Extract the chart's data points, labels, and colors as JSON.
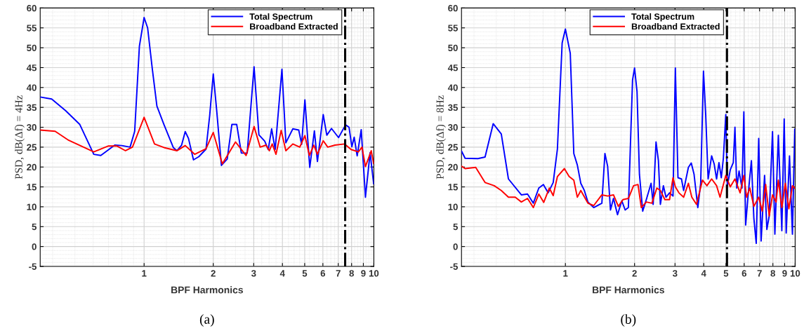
{
  "chart_data": [
    {
      "type": "line",
      "xlabel": "BPF Harmonics",
      "ylabel": "PSD, dB(Δf) = 4Hz",
      "log": "x",
      "grid": true,
      "legend": "top right",
      "line_style": "solid",
      "xlim": [
        0.353,
        10
      ],
      "xticks": [
        1,
        2,
        3,
        4,
        5,
        6,
        7,
        8,
        9,
        10
      ],
      "ylim": [
        -5,
        60
      ],
      "yticks": [
        -5,
        0,
        5,
        10,
        15,
        20,
        25,
        30,
        35,
        40,
        45,
        50,
        55,
        60
      ],
      "ref_lines": [
        {
          "axis": "x",
          "value": 7.5,
          "color": "#000000",
          "line_style": "dashdot"
        }
      ],
      "annotations": [
        "(a)"
      ],
      "series": [
        {
          "name": "Total Spectrum",
          "color": "#0000ff",
          "x": [
            0.353,
            0.396,
            0.455,
            0.525,
            0.604,
            0.648,
            0.745,
            0.8,
            0.869,
            0.91,
            0.954,
            1.0,
            1.036,
            1.086,
            1.137,
            1.22,
            1.34,
            1.39,
            1.456,
            1.51,
            1.56,
            1.64,
            1.73,
            1.86,
            1.93,
            2.0,
            2.07,
            2.17,
            2.3,
            2.41,
            2.53,
            2.65,
            2.81,
            3.01,
            3.16,
            3.35,
            3.47,
            3.59,
            3.72,
            3.98,
            4.14,
            4.44,
            4.71,
            4.85,
            5.01,
            5.26,
            5.51,
            5.68,
            6.02,
            6.24,
            6.54,
            7.02,
            7.53,
            7.8,
            8.02,
            8.21,
            8.46,
            8.81,
            9.19,
            9.63,
            9.98
          ],
          "values": [
            37.6,
            37.1,
            34.2,
            30.7,
            23.2,
            22.9,
            25.5,
            25.4,
            25.0,
            29.0,
            50.4,
            57.6,
            55.0,
            44.6,
            35.3,
            30.7,
            24.9,
            24.1,
            25.5,
            28.9,
            27.2,
            21.8,
            22.6,
            24.5,
            33.0,
            43.4,
            34.2,
            20.4,
            22.0,
            30.7,
            30.7,
            23.5,
            23.5,
            45.2,
            28.1,
            26.5,
            24.4,
            29.6,
            24.4,
            44.6,
            26.1,
            29.6,
            29.3,
            25.7,
            36.9,
            19.9,
            29.1,
            21.4,
            33.2,
            28.0,
            29.7,
            27.4,
            30.6,
            30.0,
            25.1,
            27.5,
            22.8,
            29.4,
            12.4,
            23.6,
            15.8
          ]
        },
        {
          "name": "Broadband Extracted",
          "color": "#ff0000",
          "x": [
            0.353,
            0.41,
            0.47,
            0.604,
            0.7,
            0.76,
            0.83,
            0.89,
            1.0,
            1.11,
            1.22,
            1.39,
            1.51,
            1.66,
            1.86,
            2.0,
            2.19,
            2.5,
            2.78,
            3.01,
            3.2,
            3.39,
            3.51,
            3.61,
            3.75,
            3.95,
            4.14,
            4.44,
            4.76,
            5.01,
            5.24,
            5.48,
            5.68,
            6.02,
            6.3,
            6.77,
            7.45,
            7.96,
            8.56,
            8.88,
            9.19,
            9.74,
            9.98
          ],
          "values": [
            29.3,
            29.0,
            26.7,
            23.8,
            25.3,
            25.3,
            24.1,
            25.0,
            32.5,
            25.8,
            24.9,
            24.1,
            25.4,
            23.2,
            24.6,
            28.7,
            20.8,
            26.3,
            22.9,
            30.2,
            25.0,
            25.5,
            24.1,
            25.8,
            23.2,
            29.2,
            24.1,
            25.8,
            25.0,
            27.9,
            22.9,
            25.5,
            23.2,
            26.6,
            25.0,
            25.5,
            25.8,
            24.4,
            23.8,
            25.0,
            20.1,
            24.1,
            20.9
          ]
        }
      ]
    },
    {
      "type": "line",
      "xlabel": "BPF Harmonics",
      "ylabel": "PSD, dB(Δf) = 8Hz",
      "log": "x",
      "grid": true,
      "legend": "top right",
      "line_style": "solid",
      "xlim": [
        0.353,
        10
      ],
      "xticks": [
        1,
        2,
        3,
        4,
        5,
        6,
        7,
        8,
        9,
        10
      ],
      "ylim": [
        -5,
        60
      ],
      "yticks": [
        -5,
        0,
        5,
        10,
        15,
        20,
        25,
        30,
        35,
        40,
        45,
        50,
        55,
        60
      ],
      "ref_lines": [
        {
          "axis": "x",
          "value": 5.05,
          "color": "#000000",
          "line_style": "dashdot"
        }
      ],
      "annotations": [
        "(b)"
      ],
      "series": [
        {
          "name": "Total Spectrum",
          "color": "#0000ff",
          "x": [
            0.353,
            0.366,
            0.416,
            0.447,
            0.485,
            0.526,
            0.565,
            0.643,
            0.684,
            0.725,
            0.766,
            0.802,
            0.841,
            0.885,
            0.923,
            0.968,
            1.0,
            1.05,
            1.088,
            1.127,
            1.167,
            1.209,
            1.253,
            1.328,
            1.441,
            1.486,
            1.527,
            1.571,
            1.619,
            1.686,
            1.76,
            1.82,
            1.88,
            1.96,
            2.0,
            2.05,
            2.1,
            2.17,
            2.25,
            2.36,
            2.41,
            2.48,
            2.54,
            2.59,
            2.67,
            2.74,
            2.84,
            2.94,
            3.01,
            3.09,
            3.2,
            3.27,
            3.43,
            3.53,
            3.63,
            3.77,
            3.88,
            3.99,
            4.08,
            4.18,
            4.33,
            4.44,
            4.55,
            4.66,
            4.77,
            4.87,
            4.99,
            5.07,
            5.22,
            5.38,
            5.47,
            5.57,
            5.7,
            5.87,
            5.98,
            6.09,
            6.24,
            6.45,
            6.61,
            6.77,
            6.94,
            7.11,
            7.36,
            7.53,
            7.71,
            7.97,
            8.16,
            8.45,
            8.75,
            8.96,
            9.14,
            9.45,
            9.73,
            9.96
          ],
          "values": [
            24.0,
            22.2,
            22.1,
            22.5,
            30.9,
            28.3,
            17.0,
            13.0,
            13.2,
            10.9,
            14.7,
            15.6,
            13.5,
            16.1,
            24.5,
            51.2,
            54.7,
            48.6,
            23.4,
            20.5,
            15.9,
            14.1,
            11.2,
            9.8,
            10.9,
            23.4,
            20.2,
            9.2,
            12.1,
            8.0,
            11.5,
            9.2,
            9.8,
            41.9,
            44.9,
            39.0,
            18.2,
            8.9,
            11.8,
            15.9,
            10.6,
            26.3,
            21.6,
            10.6,
            15.3,
            12.4,
            13.5,
            12.7,
            44.9,
            17.3,
            17.0,
            14.1,
            19.9,
            21.0,
            18.2,
            9.8,
            15.9,
            44.1,
            33.2,
            17.0,
            22.8,
            20.8,
            17.0,
            21.1,
            17.3,
            22.2,
            33.2,
            15.3,
            19.3,
            21.1,
            30.0,
            14.7,
            19.0,
            14.7,
            33.9,
            5.4,
            12.9,
            21.6,
            7.2,
            0.8,
            27.2,
            1.4,
            17.9,
            4.3,
            7.7,
            28.9,
            3.1,
            28.0,
            4.0,
            32.1,
            3.4,
            22.8,
            3.1,
            29.5
          ]
        },
        {
          "name": "Broadband Extracted",
          "color": "#ff0000",
          "x": [
            0.353,
            0.366,
            0.407,
            0.447,
            0.49,
            0.526,
            0.565,
            0.605,
            0.643,
            0.684,
            0.725,
            0.766,
            0.805,
            0.851,
            0.885,
            0.923,
            0.99,
            1.038,
            1.088,
            1.127,
            1.167,
            1.253,
            1.328,
            1.441,
            1.527,
            1.619,
            1.7,
            1.78,
            1.88,
            1.98,
            2.07,
            2.14,
            2.25,
            2.38,
            2.5,
            2.59,
            2.71,
            2.84,
            2.94,
            3.01,
            3.12,
            3.27,
            3.43,
            3.55,
            3.72,
            3.95,
            4.13,
            4.33,
            4.55,
            4.71,
            4.99,
            5.22,
            5.47,
            5.76,
            5.98,
            6.15,
            6.35,
            6.61,
            6.94,
            7.19,
            7.44,
            7.71,
            7.97,
            8.26,
            8.45,
            8.75,
            9.06,
            9.39,
            9.73,
            9.96
          ],
          "values": [
            20.2,
            19.6,
            19.9,
            16.1,
            15.3,
            14.1,
            12.4,
            12.4,
            11.2,
            12.1,
            9.8,
            13.2,
            11.1,
            14.7,
            12.8,
            17.6,
            19.6,
            17.6,
            16.7,
            12.4,
            14.1,
            10.9,
            10.3,
            13.0,
            12.7,
            13.0,
            10.1,
            11.8,
            12.1,
            15.3,
            15.6,
            9.8,
            11.2,
            10.9,
            14.7,
            14.1,
            11.8,
            11.8,
            17.3,
            15.0,
            13.5,
            12.4,
            15.9,
            12.4,
            10.6,
            16.7,
            15.3,
            17.0,
            15.3,
            12.4,
            17.9,
            15.0,
            17.0,
            13.5,
            17.9,
            12.4,
            14.7,
            10.1,
            12.4,
            8.9,
            15.6,
            7.7,
            13.0,
            11.2,
            16.7,
            9.8,
            15.9,
            9.5,
            15.3,
            14.7
          ]
        }
      ]
    }
  ]
}
